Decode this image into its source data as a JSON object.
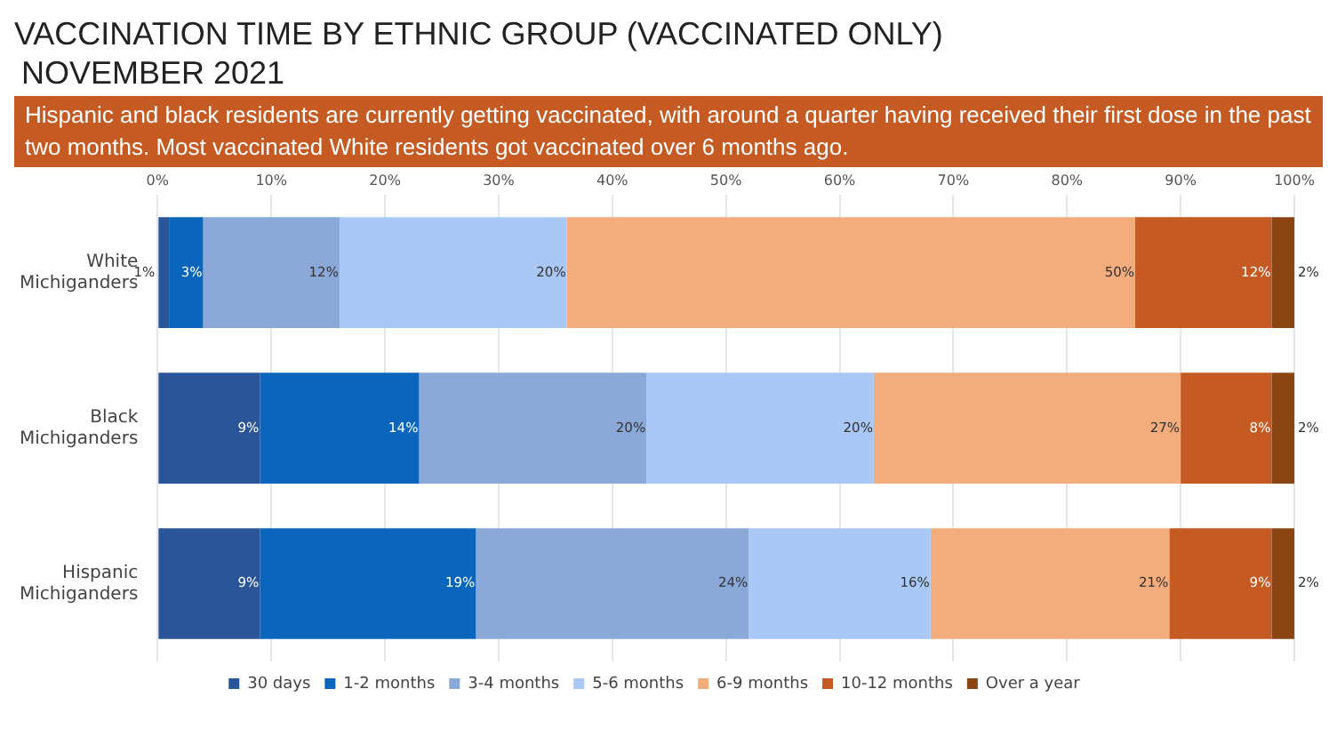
{
  "chart_data": {
    "type": "bar",
    "orientation": "horizontal",
    "stacked": true,
    "title": "VACCINATION TIME BY ETHNIC GROUP (VACCINATED ONLY)\nNOVEMBER 2021",
    "subtitle": "Hispanic and black residents are currently getting vaccinated, with around a quarter having received their first dose in the past two months. Most vaccinated White residents got vaccinated over 6 months ago.",
    "categories": [
      "White Michiganders",
      "Black Michiganders",
      "Hispanic Michiganders"
    ],
    "series": [
      {
        "name": "30 days",
        "color": "#2a5599",
        "values": [
          1,
          9,
          9
        ],
        "value_labels": [
          "1%",
          "9%",
          "9%"
        ]
      },
      {
        "name": "1-2 months",
        "color": "#0a66bd",
        "values": [
          3,
          14,
          19
        ],
        "value_labels": [
          "3%",
          "14%",
          "19%"
        ]
      },
      {
        "name": "3-4 months",
        "color": "#8aa8d8",
        "values": [
          12,
          20,
          24
        ],
        "value_labels": [
          "12%",
          "20%",
          "24%"
        ]
      },
      {
        "name": "5-6 months",
        "color": "#a9c8f5",
        "values": [
          20,
          20,
          16
        ],
        "value_labels": [
          "20%",
          "20%",
          "16%"
        ]
      },
      {
        "name": "6-9 months",
        "color": "#f3ac7b",
        "values": [
          50,
          27,
          21
        ],
        "value_labels": [
          "50%",
          "27%",
          "21%"
        ]
      },
      {
        "name": "10-12 months",
        "color": "#c55a22",
        "values": [
          12,
          8,
          9
        ],
        "value_labels": [
          "12%",
          "8%",
          "9%"
        ]
      },
      {
        "name": "Over a year",
        "color": "#8b4513",
        "values": [
          2,
          2,
          2
        ],
        "value_labels": [
          "2%",
          "2%",
          "2%"
        ]
      }
    ],
    "xlim": [
      0,
      100
    ],
    "xticks": [
      {
        "value": 0,
        "label": "0%"
      },
      {
        "value": 10,
        "label": "10%"
      },
      {
        "value": 20,
        "label": "20%"
      },
      {
        "value": 30,
        "label": "30%"
      },
      {
        "value": 40,
        "label": "40%"
      },
      {
        "value": 50,
        "label": "50%"
      },
      {
        "value": 60,
        "label": "60%"
      },
      {
        "value": 70,
        "label": "70%"
      },
      {
        "value": 80,
        "label": "80%"
      },
      {
        "value": 90,
        "label": "90%"
      },
      {
        "value": 100,
        "label": "100%"
      }
    ],
    "grid": "x",
    "legend": "bottom"
  }
}
